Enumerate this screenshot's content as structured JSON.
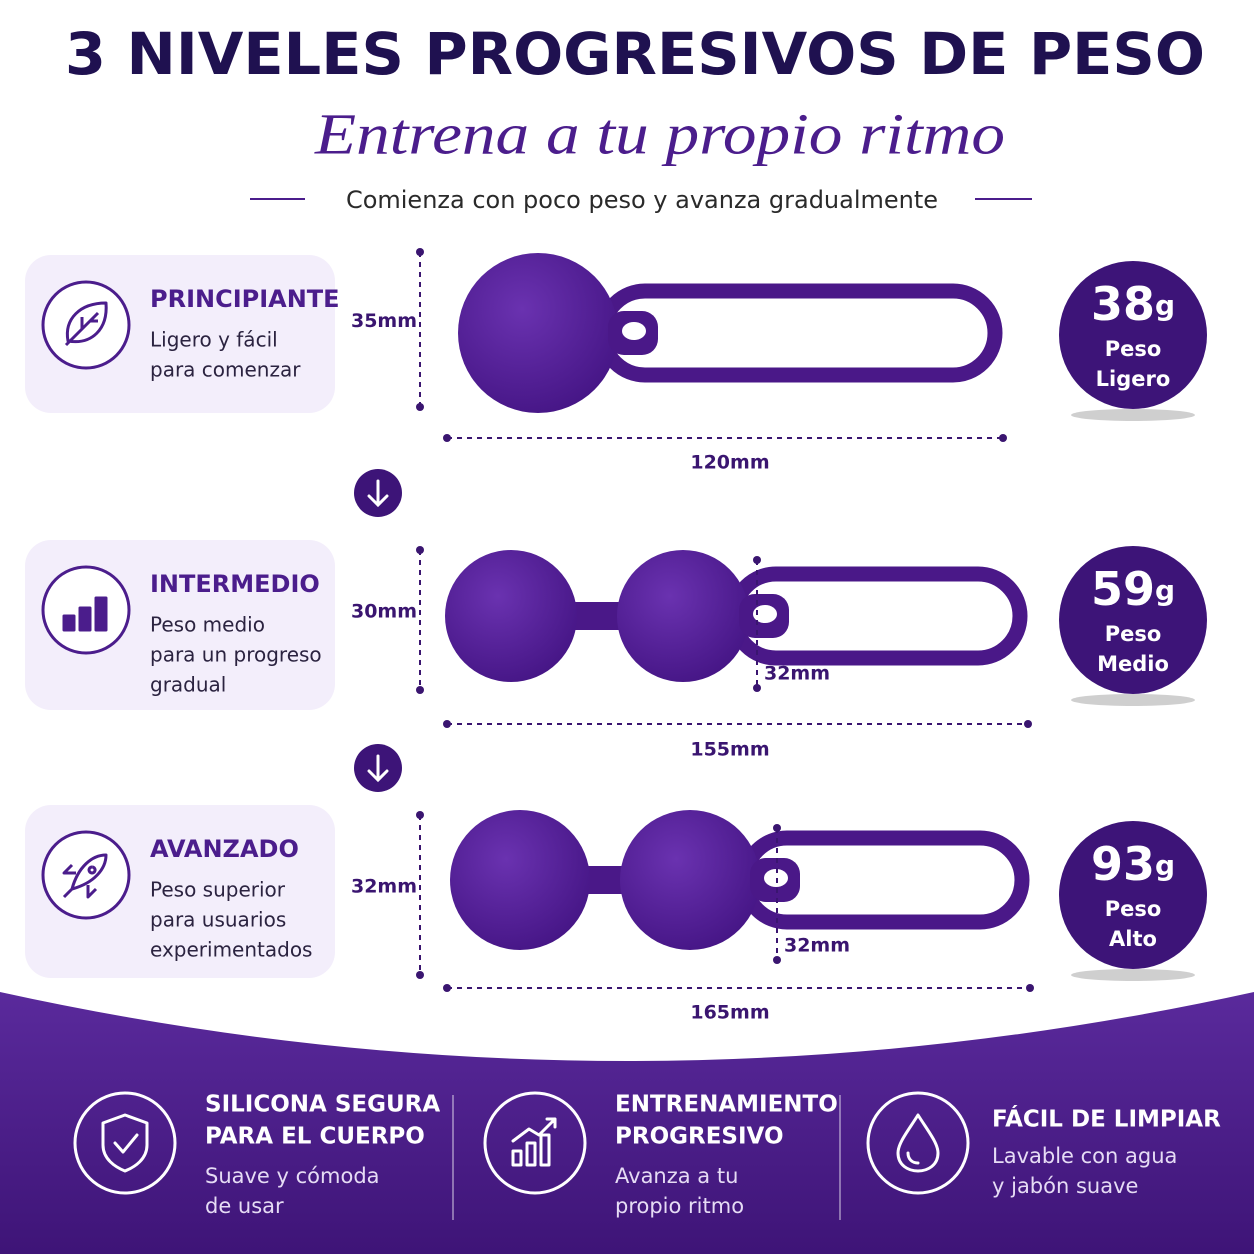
{
  "header": {
    "title": "3 NIVELES PROGRESIVOS DE PESO",
    "subtitle": "Entrena a tu propio ritmo",
    "tagline": "Comienza con poco peso y avanza gradualmente"
  },
  "levels": [
    {
      "title": "PRINCIPIANTE",
      "description": [
        "Ligero y fácil",
        "para comenzar"
      ],
      "height": "35mm",
      "length": "120mm",
      "weight": "38",
      "unit": "g",
      "weight_label": [
        "Peso",
        "Ligero"
      ]
    },
    {
      "title": "INTERMEDIO",
      "description": [
        "Peso medio",
        "para un progreso",
        "gradual"
      ],
      "height": "30mm",
      "ball": "32mm",
      "length": "155mm",
      "weight": "59",
      "unit": "g",
      "weight_label": [
        "Peso",
        "Medio"
      ]
    },
    {
      "title": "AVANZADO",
      "description": [
        "Peso superior",
        "para usuarios",
        "experimentados"
      ],
      "height": "32mm",
      "ball": "32mm",
      "length": "165mm",
      "weight": "93",
      "unit": "g",
      "weight_label": [
        "Peso",
        "Alto"
      ]
    }
  ],
  "features": [
    {
      "title": [
        "SILICONA SEGURA",
        "PARA EL CUERPO"
      ],
      "description": [
        "Suave y cómoda",
        "de usar"
      ]
    },
    {
      "title": [
        "ENTRENAMIENTO",
        "PROGRESIVO"
      ],
      "description": [
        "Avanza a tu",
        "propio ritmo"
      ]
    },
    {
      "title": [
        "FÁCIL DE LIMPIAR"
      ],
      "description": [
        "Lavable con agua",
        "y jabón suave"
      ]
    }
  ]
}
